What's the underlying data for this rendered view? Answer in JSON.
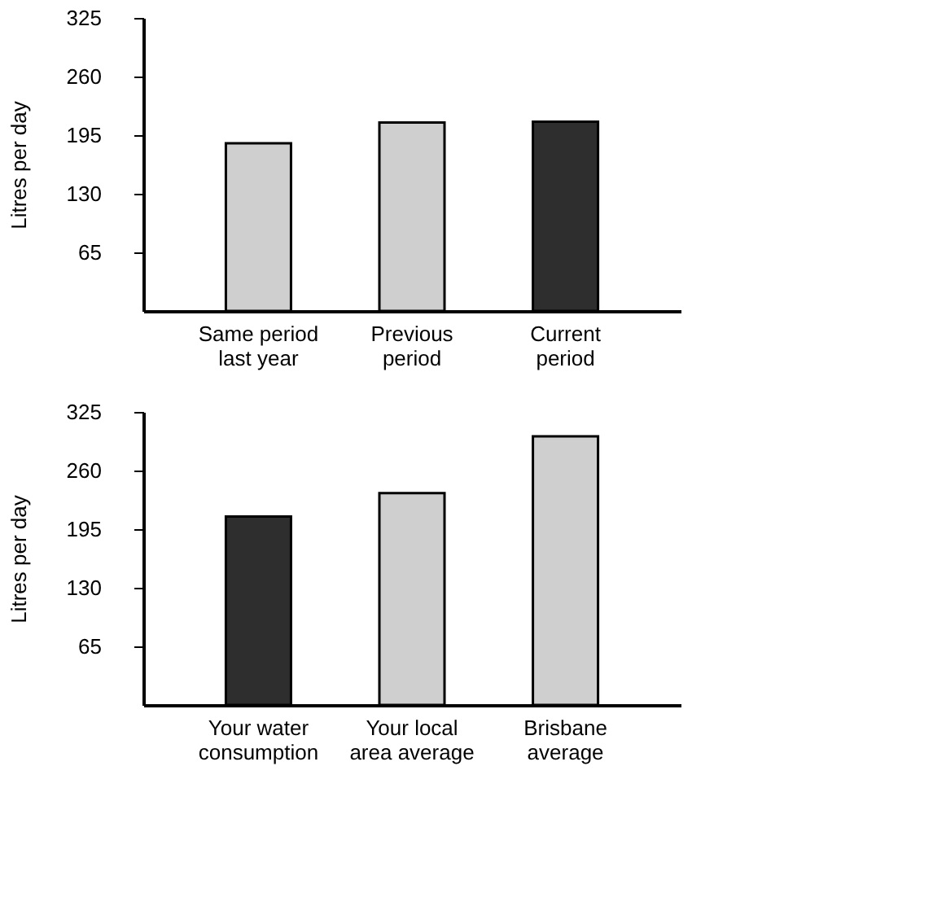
{
  "chart_data": [
    {
      "type": "bar",
      "ylabel": "Litres per day",
      "categories": [
        "Same period\nlast year",
        "Previous\nperiod",
        "Current\nperiod"
      ],
      "values": [
        186,
        209,
        210
      ],
      "colors": [
        "#cfcfcf",
        "#cfcfcf",
        "#2e2e2e"
      ],
      "ylim": [
        0,
        325
      ],
      "yticks": [
        65,
        130,
        195,
        260,
        325
      ],
      "grid": false
    },
    {
      "type": "bar",
      "ylabel": "Litres per day",
      "categories": [
        "Your water\nconsumption",
        "Your local\narea average",
        "Brisbane\naverage"
      ],
      "values": [
        209,
        235,
        298
      ],
      "colors": [
        "#2e2e2e",
        "#cfcfcf",
        "#cfcfcf"
      ],
      "ylim": [
        0,
        325
      ],
      "yticks": [
        65,
        130,
        195,
        260,
        325
      ],
      "grid": false
    }
  ]
}
